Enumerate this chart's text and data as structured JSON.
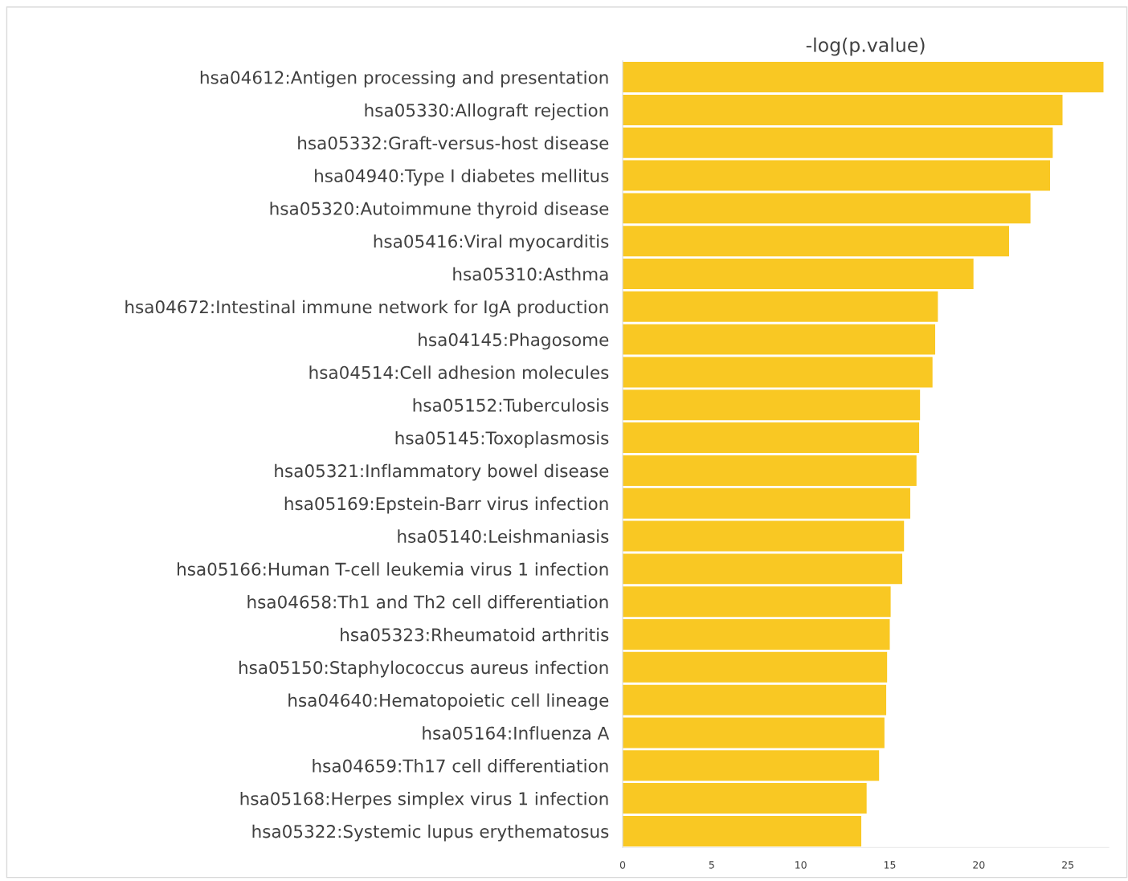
{
  "chart_data": {
    "type": "bar",
    "orientation": "horizontal",
    "title": "-log(p.value)",
    "categories": [
      "hsa04612:Antigen processing and presentation",
      "hsa05330:Allograft rejection",
      "hsa05332:Graft-versus-host disease",
      "hsa04940:Type I diabetes mellitus",
      "hsa05320:Autoimmune thyroid disease",
      "hsa05416:Viral myocarditis",
      "hsa05310:Asthma",
      "hsa04672:Intestinal immune network for IgA production",
      "hsa04145:Phagosome",
      "hsa04514:Cell adhesion molecules",
      "hsa05152:Tuberculosis",
      "hsa05145:Toxoplasmosis",
      "hsa05321:Inflammatory bowel disease",
      "hsa05169:Epstein-Barr virus infection",
      "hsa05140:Leishmaniasis",
      "hsa05166:Human T-cell leukemia virus 1 infection",
      "hsa04658:Th1 and Th2 cell differentiation",
      "hsa05323:Rheumatoid arthritis",
      "hsa05150:Staphylococcus aureus infection",
      "hsa04640:Hematopoietic cell lineage",
      "hsa05164:Influenza A",
      "hsa04659:Th17 cell differentiation",
      "hsa05168:Herpes simplex virus 1 infection",
      "hsa05322:Systemic lupus erythematosus"
    ],
    "values": [
      27.0,
      24.7,
      24.15,
      24.0,
      22.9,
      21.7,
      19.7,
      17.7,
      17.55,
      17.4,
      16.7,
      16.65,
      16.5,
      16.15,
      15.8,
      15.7,
      15.05,
      15.0,
      14.85,
      14.8,
      14.7,
      14.4,
      13.7,
      13.4
    ],
    "color": "#f9c823",
    "xlim": [
      0,
      27.3
    ],
    "xticks": [
      0,
      5,
      10,
      15,
      20,
      25
    ],
    "grid": false,
    "legend": false
  }
}
